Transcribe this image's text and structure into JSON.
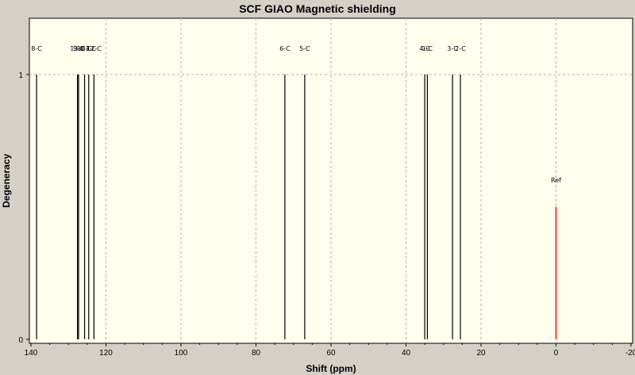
{
  "chart_data": {
    "type": "stick-spectrum",
    "title": "SCF GIAO Magnetic shielding",
    "xlabel": "Shift (ppm)",
    "ylabel": "Degeneracy",
    "xlim": [
      140,
      -20
    ],
    "ylim": [
      0,
      1
    ],
    "x_ticks": [
      140,
      120,
      100,
      80,
      60,
      40,
      20,
      0,
      -20
    ],
    "y_ticks": [
      0,
      1
    ],
    "grid": true,
    "colors": {
      "peak": "#000000",
      "reference": "#ff0000",
      "plot_background": "#ffffee"
    },
    "peaks": [
      {
        "label": "8-C",
        "shift": 138.5,
        "degeneracy": 1
      },
      {
        "label": "13-C",
        "shift": 127.6,
        "degeneracy": 1
      },
      {
        "label": "9-C",
        "shift": 127.3,
        "degeneracy": 1
      },
      {
        "label": "10-C",
        "shift": 125.7,
        "degeneracy": 1
      },
      {
        "label": "11-C",
        "shift": 124.6,
        "degeneracy": 1
      },
      {
        "label": "12-C",
        "shift": 123.2,
        "degeneracy": 1
      },
      {
        "label": "6-C",
        "shift": 72.3,
        "degeneracy": 1
      },
      {
        "label": "5-C",
        "shift": 67.0,
        "degeneracy": 1
      },
      {
        "label": "4-C",
        "shift": 35.0,
        "degeneracy": 1
      },
      {
        "label": "1-C",
        "shift": 34.3,
        "degeneracy": 1
      },
      {
        "label": "3-C",
        "shift": 27.6,
        "degeneracy": 1
      },
      {
        "label": "2-C",
        "shift": 25.5,
        "degeneracy": 1
      }
    ],
    "reference": {
      "label": "Ref",
      "shift": 0,
      "degeneracy": 0.5
    }
  }
}
